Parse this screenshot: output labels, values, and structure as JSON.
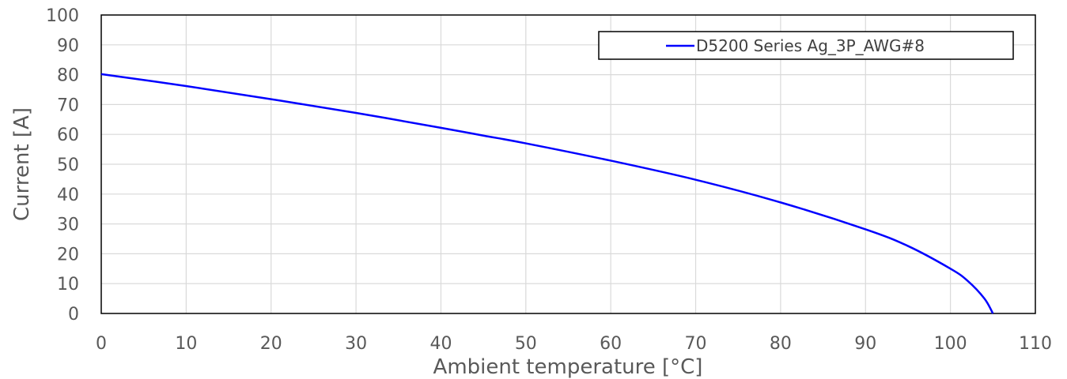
{
  "chart_data": {
    "type": "line",
    "title": "",
    "xlabel": "Ambient temperature [°C]",
    "ylabel": "Current [A]",
    "xlim": [
      0,
      110
    ],
    "ylim": [
      0,
      100
    ],
    "x_ticks": [
      "0",
      "10",
      "20",
      "30",
      "40",
      "50",
      "60",
      "70",
      "80",
      "90",
      "100",
      "110"
    ],
    "y_ticks": [
      "0",
      "10",
      "20",
      "30",
      "40",
      "50",
      "60",
      "70",
      "80",
      "90",
      "100"
    ],
    "grid": true,
    "legend_position": "top-right",
    "series": [
      {
        "name": "D5200 Series Ag_3P_AWG#8",
        "color": "#0000ff",
        "x": [
          0,
          10,
          20,
          30,
          40,
          45,
          50,
          60,
          70,
          80,
          90,
          95,
          100,
          102,
          104,
          105
        ],
        "y": [
          80.2,
          76.2,
          71.8,
          67.2,
          62.2,
          59.6,
          57.0,
          51.2,
          44.8,
          37.2,
          28.2,
          22.6,
          15.0,
          11.0,
          5.0,
          0
        ]
      }
    ]
  }
}
